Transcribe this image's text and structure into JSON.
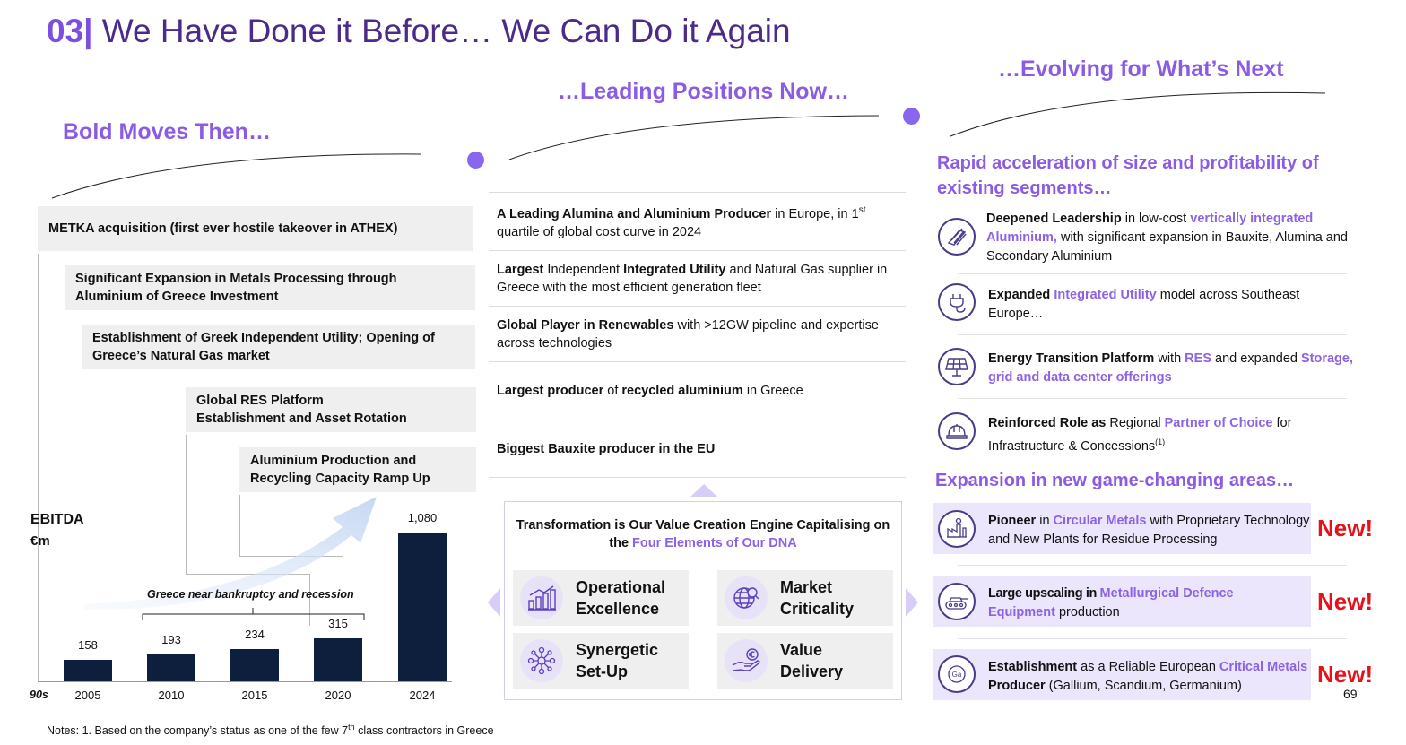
{
  "title": {
    "number": "03|",
    "text": "We Have Done it Before… We Can Do it Again"
  },
  "headings": {
    "then": "Bold Moves Then…",
    "now": "…Leading Positions Now…",
    "next": "…Evolving for What’s Next"
  },
  "left": {
    "milestones": [
      "METKA acquisition (first ever hostile takeover in ATHEX)",
      "Significant Expansion in Metals Processing through Aluminium of Greece Investment",
      "Establishment of Greek Independent Utility; Opening of Greece’s Natural Gas market",
      "Global RES Platform Establishment and Asset Rotation",
      "Aluminium Production and Recycling Capacity Ramp Up"
    ],
    "recession_note": "Greece near bankruptcy and recession"
  },
  "chart_data": {
    "type": "bar",
    "title": "EBITDA",
    "ylabel": "€m",
    "origin_label": "90s",
    "categories": [
      "2005",
      "2010",
      "2015",
      "2020",
      "2024"
    ],
    "values": [
      158,
      193,
      234,
      315,
      1080
    ],
    "value_labels": [
      "158",
      "193",
      "234",
      "315",
      "1,080"
    ],
    "ylim": [
      0,
      1080
    ],
    "colors": {
      "bar": "#0d1f3c"
    }
  },
  "middle": {
    "positions": [
      {
        "b1": "A Leading Alumina and Aluminium Producer",
        "t1": " in Europe, in 1",
        "sup": "st",
        "t2": " quartile of global cost curve in 2024"
      },
      {
        "b1": "Largest",
        "t1": " Independent ",
        "b2": "Integrated Utility",
        "t2": " and Natural Gas supplier in Greece with the most efficient generation fleet"
      },
      {
        "b1": "Global Player in Renewables",
        "t1": " with >12GW pipeline and expertise across technologies"
      },
      {
        "b1": "Largest producer",
        "t1": " of ",
        "b2": "recycled aluminium",
        "t2": " in Greece"
      },
      {
        "b1": "Biggest Bauxite producer in the EU"
      }
    ],
    "dna_intro_bold": "Transformation is Our Value Creation Engine Capitalising on the ",
    "dna_intro_accent": "Four Elements of Our DNA",
    "dna": [
      {
        "label": "Operational Excellence",
        "icon": "bar-chart-up-icon"
      },
      {
        "label": "Market Criticality",
        "icon": "globe-search-icon"
      },
      {
        "label": "Synergetic Set-Up",
        "icon": "network-nodes-icon"
      },
      {
        "label": "Value Delivery",
        "icon": "hand-euro-icon"
      }
    ]
  },
  "right": {
    "section1_title": "Rapid acceleration of size and profitability of existing segments…",
    "items": [
      {
        "icon": "aluminium-bars-icon",
        "b1": "Deepened Leadership",
        "t1": " in low-cost ",
        "a1": "vertically integrated Aluminium,",
        "t2": " with significant expansion in Bauxite, Alumina and Secondary Aluminium"
      },
      {
        "icon": "plug-icon",
        "b1": "Expanded ",
        "a1": "Integrated Utility",
        "t2": " model across Southeast Europe…"
      },
      {
        "icon": "solar-panel-icon",
        "b1": "Energy Transition Platform",
        "t1": " with ",
        "a1": "RES",
        "t2": " and expanded ",
        "a2": "Storage, grid and data center offerings"
      },
      {
        "icon": "hard-hat-icon",
        "b1": "Reinforced Role as",
        "t1": " Regional ",
        "a1": "Partner of Choice",
        "t2": " for Infrastructure & Concessions",
        "sup": "(1)"
      }
    ],
    "section2_title": "Expansion in new game-changing areas…",
    "new_items": [
      {
        "icon": "recycling-plant-icon",
        "b1": "Pioneer",
        "t1": " in ",
        "a1": "Circular Metals",
        "t2": " with Proprietary Technology and New Plants for Residue Processing",
        "tag": "New!"
      },
      {
        "icon": "tank-icon",
        "b1": "Large upscaling in ",
        "a1": "Metallurgical Defence Equipment",
        "t2": " production",
        "tag": "New!"
      },
      {
        "icon": "gallium-element-icon",
        "b1": "Establishment",
        "t1": " as a Reliable European ",
        "a1": "Critical Metals",
        "b2": " Producer",
        "t2": " (Gallium, Scandium, Germanium)",
        "tag": "New!"
      }
    ]
  },
  "page_number": "69",
  "notes": {
    "pre": "Notes: 1. Based on the company’s status as one of the few 7",
    "sup": "th",
    "post": " class contractors in Greece"
  },
  "colors": {
    "accent": "#8c5be3",
    "title": "#4b2a8a",
    "new": "#e3121b",
    "bar": "#0d1f3c",
    "box_grey": "#efefef",
    "box_lavender": "#ebe6fb"
  }
}
